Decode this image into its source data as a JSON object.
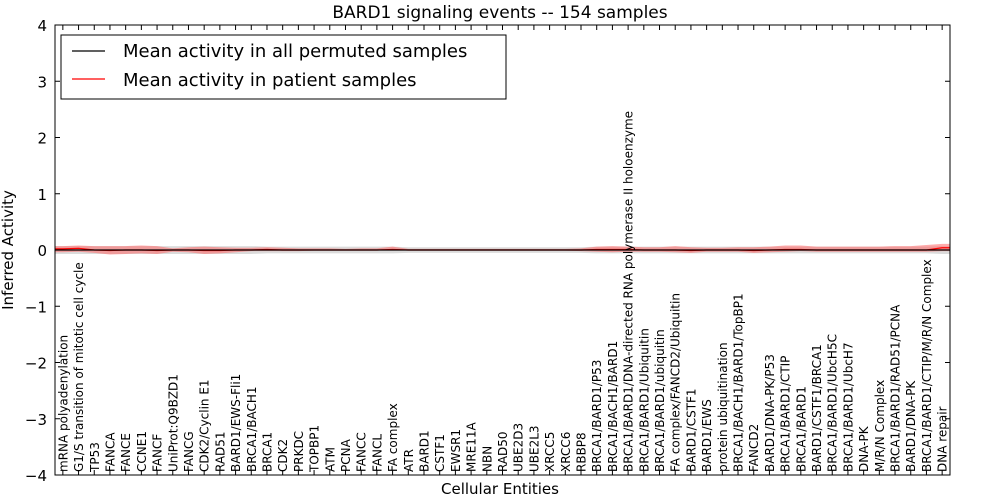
{
  "chart_data": {
    "type": "line",
    "title": "BARD1 signaling events -- 154 samples",
    "xlabel": "Cellular Entities",
    "ylabel": "Inferred Activity",
    "ylim": [
      -4,
      4
    ],
    "yticks": [
      -4,
      -3,
      -2,
      -1,
      0,
      1,
      2,
      3,
      4
    ],
    "grid": false,
    "legend_position": "top-left",
    "colors": {
      "permuted": "#000000",
      "patient": "#ff0000",
      "permuted_band": "#c8c8c8",
      "patient_band": "#ff6666"
    },
    "categories": [
      "mRNA polyadenylation",
      "G1/S transition of mitotic cell cycle",
      "TP53",
      "FANCA",
      "FANCE",
      "CCNE1",
      "FANCF",
      "UniProt:Q9BZD1",
      "FANCG",
      "CDK2/Cyclin E1",
      "RAD51",
      "BARD1/EWS-Fli1",
      "BRCA1/BACH1",
      "BRCA1",
      "CDK2",
      "PRKDC",
      "TOPBP1",
      "ATM",
      "PCNA",
      "FANCC",
      "FANCL",
      "FA complex",
      "ATR",
      "BARD1",
      "CSTF1",
      "EWSR1",
      "MRE11A",
      "NBN",
      "RAD50",
      "UBE2D3",
      "UBE2L3",
      "XRCC5",
      "XRCC6",
      "RBBP8",
      "BRCA1/BARD1/P53",
      "BRCA1/BACH1/BARD1",
      "BRCA1/BARD1/DNA-directed RNA polymerase II holoenzyme",
      "BRCA1/BARD1/Ubiquitin",
      "BRCA1/BARD1/ubiquitin",
      "FA complex/FANCD2/Ubiquitin",
      "BARD1/CSTF1",
      "BARD1/EWS",
      "protein ubiquitination",
      "BRCA1/BACH1/BARD1/TopBP1",
      "FANCD2",
      "BARD1/DNA-PK/P53",
      "BRCA1/BARD1/CTIP",
      "BRCA1/BARD1",
      "BARD1/CSTF1/BRCA1",
      "BRCA1/BARD1/UbcH5C",
      "BRCA1/BARD1/UbcH7",
      "DNA-PK",
      "M/R/N Complex",
      "BRCA1/BARD1/RAD51/PCNA",
      "BARD1/DNA-PK",
      "BRCA1/BARD1/CTIP/M/R/N Complex",
      "DNA repair"
    ],
    "series": [
      {
        "name": "Mean activity in all permuted samples",
        "values": [
          0,
          0,
          0,
          0,
          0,
          0,
          0,
          0,
          0,
          0,
          0,
          0,
          0,
          0,
          0,
          0,
          0,
          0,
          0,
          0,
          0,
          0,
          0,
          0,
          0,
          0,
          0,
          0,
          0,
          0,
          0,
          0,
          0,
          0,
          0,
          0,
          0,
          0,
          0,
          0,
          0,
          0,
          0,
          0,
          0,
          0,
          0,
          0,
          0,
          0,
          0,
          0,
          0,
          0,
          0,
          0,
          0
        ],
        "band_low": [
          -0.07,
          -0.07,
          -0.07,
          -0.07,
          -0.07,
          -0.07,
          -0.07,
          -0.07,
          -0.07,
          -0.07,
          -0.07,
          -0.07,
          -0.07,
          -0.06,
          -0.06,
          -0.06,
          -0.06,
          -0.06,
          -0.06,
          -0.06,
          -0.06,
          -0.06,
          -0.05,
          -0.05,
          -0.05,
          -0.05,
          -0.05,
          -0.05,
          -0.05,
          -0.05,
          -0.05,
          -0.05,
          -0.05,
          -0.05,
          -0.06,
          -0.06,
          -0.06,
          -0.06,
          -0.06,
          -0.06,
          -0.06,
          -0.06,
          -0.06,
          -0.06,
          -0.06,
          -0.06,
          -0.06,
          -0.06,
          -0.06,
          -0.06,
          -0.06,
          -0.06,
          -0.06,
          -0.06,
          -0.06,
          -0.06,
          -0.07
        ],
        "band_high": [
          0.07,
          0.07,
          0.07,
          0.07,
          0.07,
          0.07,
          0.07,
          0.07,
          0.07,
          0.07,
          0.07,
          0.07,
          0.07,
          0.06,
          0.06,
          0.06,
          0.06,
          0.06,
          0.06,
          0.06,
          0.06,
          0.06,
          0.05,
          0.05,
          0.05,
          0.05,
          0.05,
          0.05,
          0.05,
          0.05,
          0.05,
          0.05,
          0.05,
          0.05,
          0.06,
          0.06,
          0.06,
          0.06,
          0.06,
          0.06,
          0.06,
          0.06,
          0.06,
          0.06,
          0.06,
          0.06,
          0.06,
          0.06,
          0.06,
          0.06,
          0.06,
          0.06,
          0.06,
          0.06,
          0.06,
          0.06,
          0.07
        ]
      },
      {
        "name": "Mean activity in patient samples",
        "values": [
          0.02,
          0.03,
          0,
          -0.01,
          0,
          0,
          -0.01,
          0,
          0,
          -0.01,
          -0.01,
          0,
          0,
          0.01,
          0,
          0,
          0,
          0,
          0,
          0,
          0,
          0.01,
          0,
          0,
          0,
          0,
          0,
          0,
          0,
          0,
          0,
          0,
          0,
          0,
          0.01,
          0.01,
          0.01,
          0,
          0,
          0,
          -0.01,
          0,
          0,
          0,
          -0.01,
          0,
          0.01,
          0.01,
          0,
          0,
          0,
          0,
          0,
          0,
          0,
          0,
          0.04
        ],
        "band_low": [
          -0.04,
          -0.03,
          -0.05,
          -0.08,
          -0.07,
          -0.06,
          -0.07,
          -0.03,
          -0.04,
          -0.07,
          -0.06,
          -0.04,
          -0.02,
          -0.02,
          -0.02,
          -0.02,
          -0.01,
          -0.01,
          -0.01,
          -0.01,
          -0.01,
          -0.01,
          -0.01,
          -0.01,
          -0.01,
          -0.01,
          -0.01,
          -0.01,
          -0.01,
          -0.01,
          -0.01,
          -0.01,
          -0.01,
          -0.02,
          -0.03,
          -0.04,
          -0.03,
          -0.03,
          -0.03,
          -0.04,
          -0.05,
          -0.03,
          -0.03,
          -0.03,
          -0.05,
          -0.04,
          -0.03,
          -0.02,
          -0.03,
          -0.03,
          -0.03,
          -0.03,
          -0.03,
          -0.03,
          -0.03,
          -0.03,
          -0.02
        ],
        "band_high": [
          0.07,
          0.08,
          0.07,
          0.07,
          0.07,
          0.08,
          0.07,
          0.03,
          0.05,
          0.06,
          0.05,
          0.04,
          0.04,
          0.05,
          0.04,
          0.03,
          0.03,
          0.03,
          0.02,
          0.03,
          0.03,
          0.06,
          0.02,
          0.02,
          0.02,
          0.02,
          0.02,
          0.02,
          0.02,
          0.02,
          0.02,
          0.02,
          0.02,
          0.03,
          0.06,
          0.07,
          0.06,
          0.05,
          0.05,
          0.07,
          0.05,
          0.04,
          0.04,
          0.05,
          0.05,
          0.06,
          0.08,
          0.08,
          0.06,
          0.06,
          0.06,
          0.06,
          0.06,
          0.07,
          0.07,
          0.09,
          0.11
        ]
      }
    ]
  }
}
